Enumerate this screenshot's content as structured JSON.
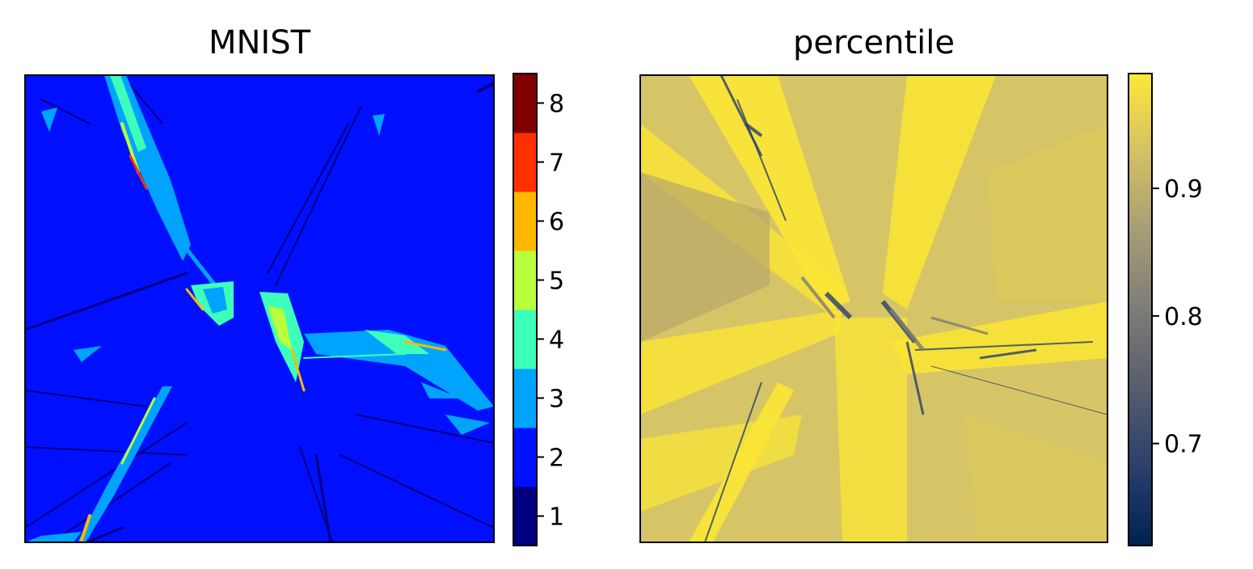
{
  "chart_data": [
    {
      "type": "heatmap",
      "title": "MNIST",
      "xlabel": "",
      "ylabel": "",
      "x_ticks": [],
      "y_ticks": [],
      "grid": false,
      "background_value": 2,
      "colorbar": {
        "kind": "discrete",
        "colormap": "jet",
        "range": [
          0.5,
          8.5
        ],
        "ticks": [
          1,
          2,
          3,
          4,
          5,
          6,
          7,
          8
        ],
        "tick_labels": [
          "1",
          "2",
          "3",
          "4",
          "5",
          "6",
          "7",
          "8"
        ],
        "levels": [
          {
            "value": 1,
            "color": "#000080"
          },
          {
            "value": 2,
            "color": "#0010ff"
          },
          {
            "value": 3,
            "color": "#00a4ff"
          },
          {
            "value": 4,
            "color": "#3dffb9"
          },
          {
            "value": 5,
            "color": "#b9ff3d"
          },
          {
            "value": 6,
            "color": "#ffb800"
          },
          {
            "value": 7,
            "color": "#ff3000"
          },
          {
            "value": 8,
            "color": "#800000"
          }
        ]
      }
    },
    {
      "type": "heatmap",
      "title": "percentile",
      "xlabel": "",
      "ylabel": "",
      "x_ticks": [],
      "y_ticks": [],
      "grid": false,
      "colorbar": {
        "kind": "continuous",
        "colormap": "cividis",
        "range": [
          0.62,
          0.99
        ],
        "ticks": [
          0.7,
          0.8,
          0.9
        ],
        "tick_labels": [
          "0.7",
          "0.8",
          "0.9"
        ],
        "stops": [
          "#00224e",
          "#2a3f6c",
          "#575d6d",
          "#7d7c78",
          "#a69d75",
          "#d3c164",
          "#fee838"
        ]
      }
    }
  ]
}
